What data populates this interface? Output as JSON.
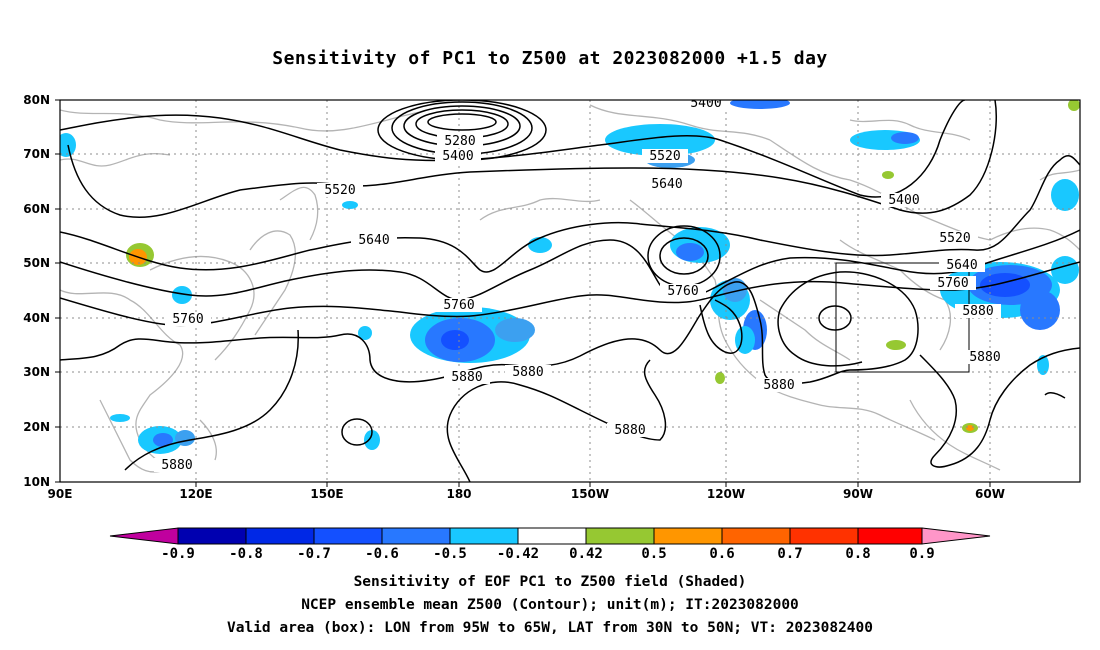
{
  "title": "Sensitivity of PC1 to Z500 at 2023082000 +1.5 day",
  "lat_labels": [
    "80N",
    "70N",
    "60N",
    "50N",
    "40N",
    "30N",
    "20N",
    "10N"
  ],
  "lon_labels": [
    "90E",
    "120E",
    "150E",
    "180",
    "150W",
    "120W",
    "90W",
    "60W"
  ],
  "contour_labels": [
    {
      "text": "5400",
      "id": "5400-top"
    },
    {
      "text": "5280",
      "id": "5280-low"
    },
    {
      "text": "5400",
      "id": "5400-low"
    },
    {
      "text": "5520",
      "id": "5520-mid"
    },
    {
      "text": "5520",
      "id": "5520-gulf"
    },
    {
      "text": "5640",
      "id": "5640-gulf"
    },
    {
      "text": "5400",
      "id": "5400-canada"
    },
    {
      "text": "5520",
      "id": "5520-east"
    },
    {
      "text": "5640",
      "id": "5640-west"
    },
    {
      "text": "5640",
      "id": "5640-east"
    },
    {
      "text": "5760",
      "id": "5760-east"
    },
    {
      "text": "5880",
      "id": "5880-east"
    },
    {
      "text": "5760",
      "id": "5760-west"
    },
    {
      "text": "5760",
      "id": "5760-dateline"
    },
    {
      "text": "5760",
      "id": "5760-pacific"
    },
    {
      "text": "5880",
      "id": "5880-a"
    },
    {
      "text": "5880",
      "id": "5880-b"
    },
    {
      "text": "5880",
      "id": "5880-c"
    },
    {
      "text": "5880",
      "id": "5880-d"
    },
    {
      "text": "5880",
      "id": "5880-atl"
    },
    {
      "text": "5880",
      "id": "5880-sw"
    }
  ],
  "colorbar": {
    "ticks": [
      "-0.9",
      "-0.8",
      "-0.7",
      "-0.6",
      "-0.5",
      "-0.42",
      "0.42",
      "0.5",
      "0.6",
      "0.7",
      "0.8",
      "0.9"
    ],
    "colors": [
      "#c0009e",
      "#0000b0",
      "#0028e6",
      "#1450ff",
      "#2878ff",
      "#3ca0f0",
      "#19c8ff",
      "#ffffff",
      "#96c832",
      "#ff9600",
      "#ff6400",
      "#ff3200",
      "#ff0000",
      "#ff96c8"
    ]
  },
  "valid_box": {
    "lon_from": "95W",
    "lon_to": "65W",
    "lat_from": "30N",
    "lat_to": "50N"
  },
  "footer": {
    "line1": "Sensitivity of EOF PC1 to Z500 field (Shaded)",
    "line2": "NCEP ensemble mean Z500 (Contour); unit(m); IT:2023082000",
    "line3": "Valid area (box): LON from 95W to 65W, LAT from 30N to 50N; VT: 2023082400"
  }
}
